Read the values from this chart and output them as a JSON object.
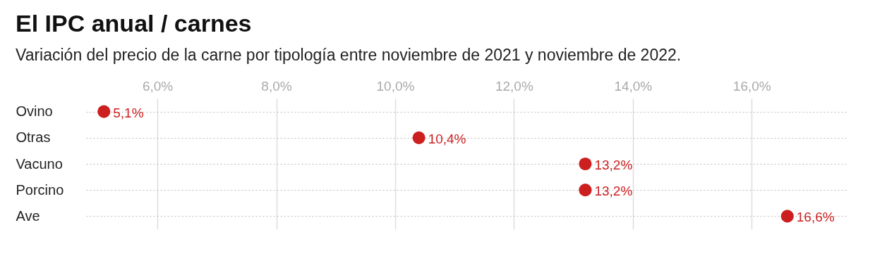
{
  "chart_data": {
    "type": "scatter",
    "title": "El IPC anual / carnes",
    "subtitle": "Variación del precio de la carne por tipología entre noviembre de 2021 y noviembre de 2022.",
    "orientation": "horizontal",
    "categories": [
      "Ovino",
      "Otras",
      "Vacuno",
      "Porcino",
      "Ave"
    ],
    "values": [
      5.1,
      10.4,
      13.2,
      13.2,
      16.6
    ],
    "value_labels": [
      "5,1%",
      "10,4%",
      "13,2%",
      "13,2%",
      "16,6%"
    ],
    "color": "#cc1f1f",
    "marker": "circle",
    "grid": true,
    "xlim": [
      4.8,
      17.6
    ],
    "xticks": [
      {
        "value": 6,
        "label": "6,0%"
      },
      {
        "value": 8,
        "label": "8,0%"
      },
      {
        "value": 10,
        "label": "10,0%"
      },
      {
        "value": 12,
        "label": "12,0%"
      },
      {
        "value": 14,
        "label": "14,0%"
      },
      {
        "value": 16,
        "label": "16,0%"
      }
    ]
  }
}
